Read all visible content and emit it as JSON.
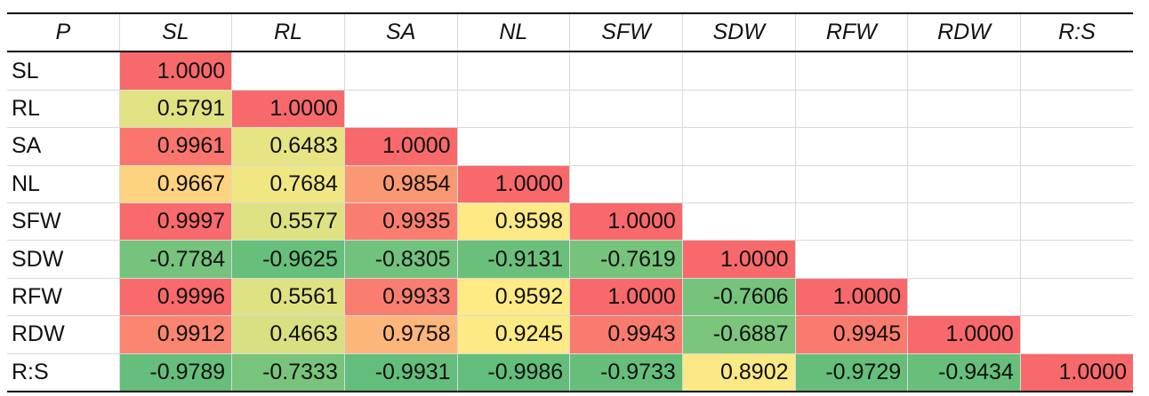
{
  "chart_data": {
    "type": "heatmap",
    "corner_label": "P",
    "columns": [
      "SL",
      "RL",
      "SA",
      "NL",
      "SFW",
      "SDW",
      "RFW",
      "RDW",
      "R:S"
    ],
    "rows": [
      "SL",
      "RL",
      "SA",
      "NL",
      "SFW",
      "SDW",
      "RFW",
      "RDW",
      "R:S"
    ],
    "cells": [
      [
        "1.0000"
      ],
      [
        "0.5791",
        "1.0000"
      ],
      [
        "0.9961",
        "0.6483",
        "1.0000"
      ],
      [
        "0.9667",
        "0.7684",
        "0.9854",
        "1.0000"
      ],
      [
        "0.9997",
        "0.5577",
        "0.9935",
        "0.9598",
        "1.0000"
      ],
      [
        "-0.7784",
        "-0.9625",
        "-0.8305",
        "-0.9131",
        "-0.7619",
        "1.0000"
      ],
      [
        "0.9996",
        "0.5561",
        "0.9933",
        "0.9592",
        "1.0000",
        "-0.7606",
        "1.0000"
      ],
      [
        "0.9912",
        "0.4663",
        "0.9758",
        "0.9245",
        "0.9943",
        "-0.6887",
        "0.9945",
        "1.0000"
      ],
      [
        "-0.9789",
        "-0.7333",
        "-0.9931",
        "-0.9986",
        "-0.9733",
        "0.8902",
        "-0.9729",
        "-0.9434",
        "1.0000"
      ]
    ],
    "lower_triangular": true,
    "color_scale": {
      "low": "#63BE7B",
      "mid": "#FFEB84",
      "high": "#F8696B"
    }
  }
}
